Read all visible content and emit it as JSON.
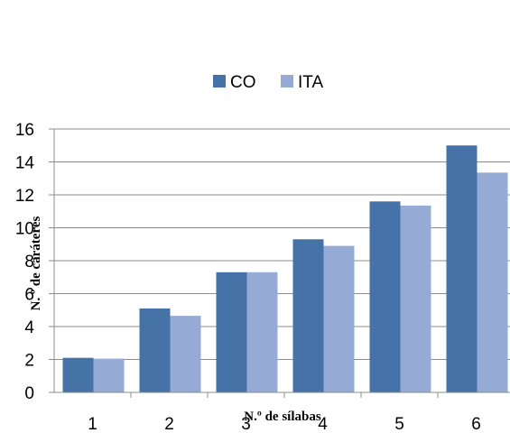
{
  "chart_data": {
    "type": "bar",
    "categories": [
      "1",
      "2",
      "3",
      "4",
      "5",
      "6"
    ],
    "series": [
      {
        "name": "CO",
        "color": "#4572A7",
        "values": [
          2.1,
          5.1,
          7.3,
          9.3,
          11.6,
          15.0
        ]
      },
      {
        "name": "ITA",
        "color": "#95ABD5",
        "values": [
          2.05,
          4.65,
          7.3,
          8.9,
          11.35,
          13.35
        ]
      }
    ],
    "title": "",
    "xlabel": "N.º de sílabas",
    "ylabel": "N. º de caráteres",
    "ylim": [
      0,
      16
    ],
    "yticks": [
      "0",
      "2",
      "4",
      "6",
      "8",
      "10",
      "12",
      "14",
      "16"
    ],
    "grid": true,
    "legend": "top-center"
  }
}
